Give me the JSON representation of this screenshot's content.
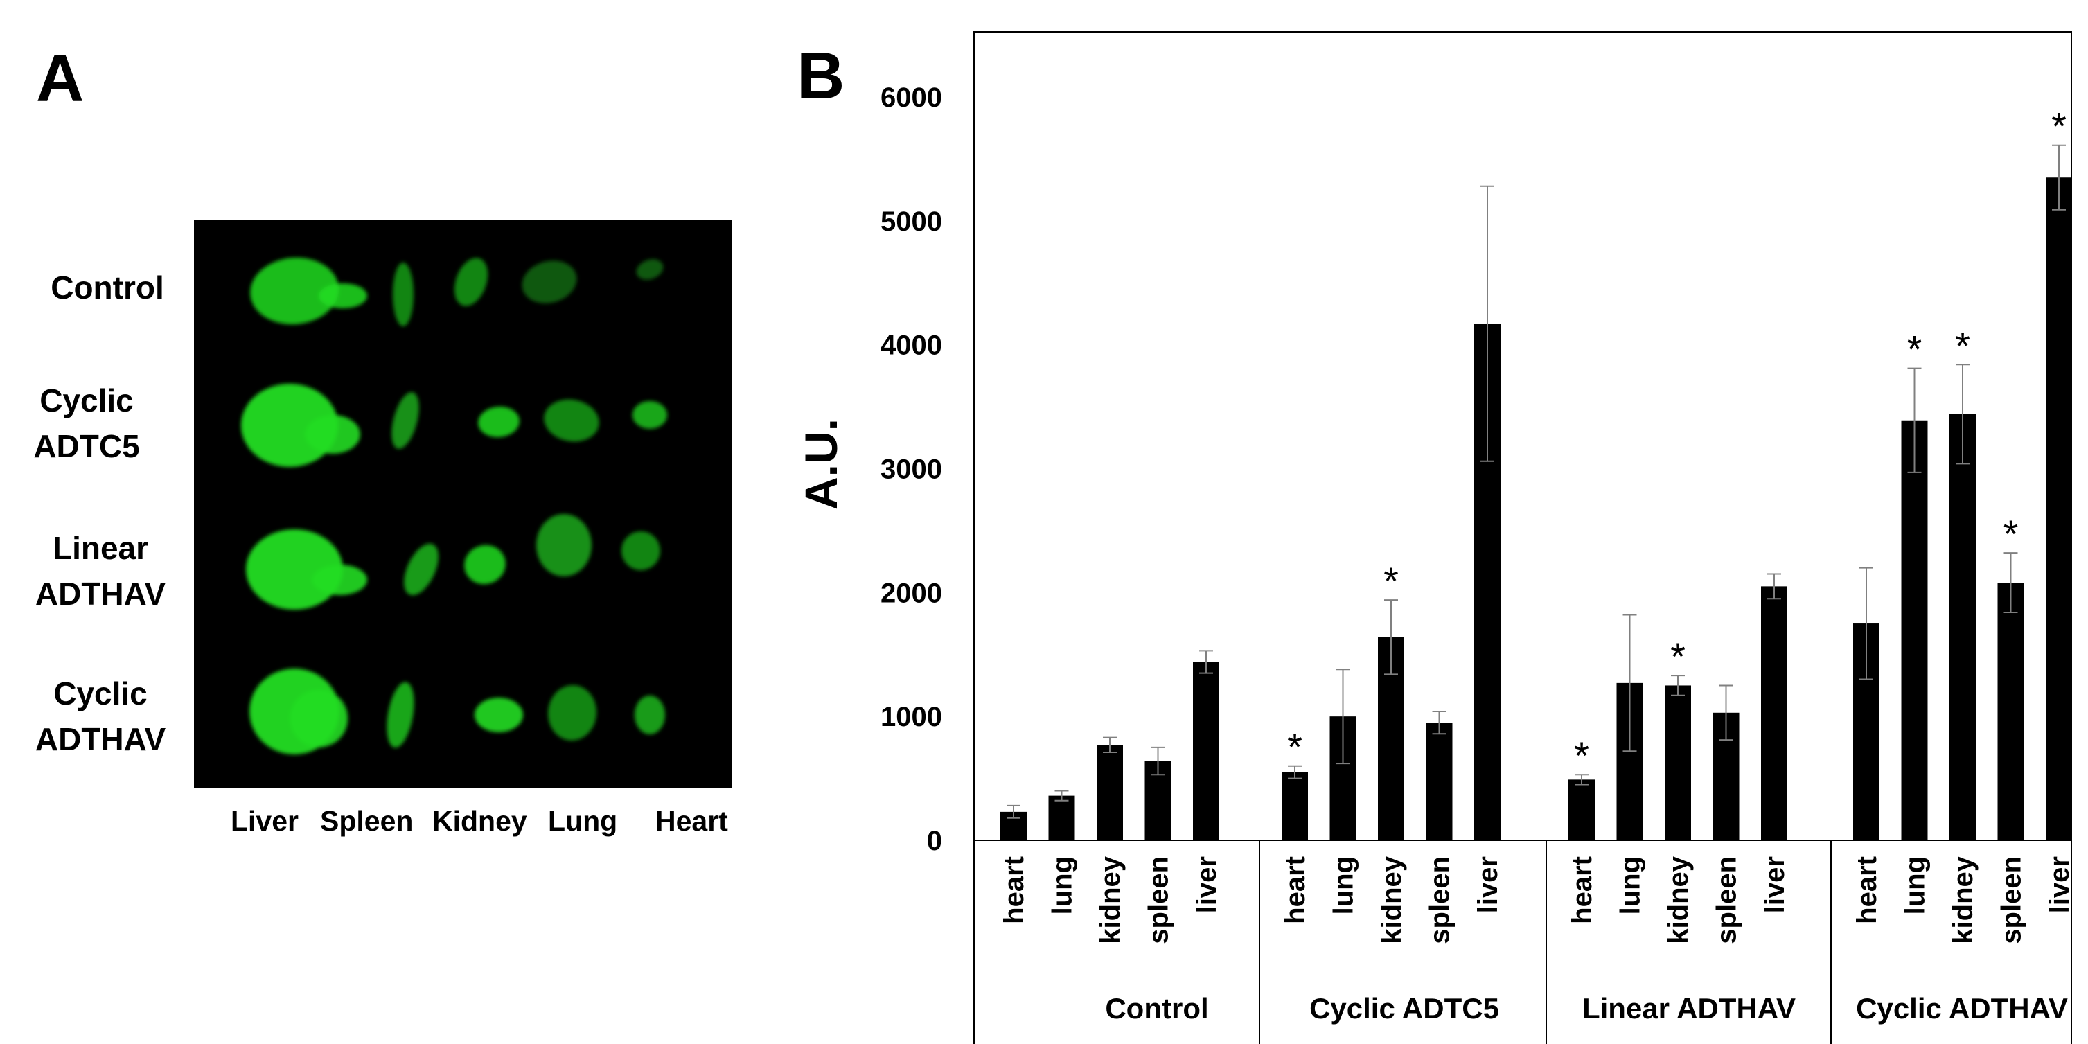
{
  "panel_a": {
    "letter": "A",
    "row_labels": [
      [
        "Control"
      ],
      [
        "Cyclic",
        "ADTC5"
      ],
      [
        "Linear",
        "ADTHAV"
      ],
      [
        "Cyclic",
        "ADTHAV"
      ]
    ],
    "column_labels": [
      "Liver",
      "Spleen",
      "Kidney",
      "Lung",
      "Heart"
    ],
    "fluorescence_color": "#22dd22",
    "background_color": "#000000"
  },
  "panel_b": {
    "letter": "B"
  },
  "chart_data": {
    "type": "bar",
    "ylabel": "A.U.",
    "xlabel": "",
    "ylim": [
      0,
      6500
    ],
    "yticks": [
      0,
      1000,
      2000,
      3000,
      4000,
      5000,
      6000
    ],
    "grid": false,
    "bar_color": "#000000",
    "error_bar_color": "#808080",
    "significance_marker": "*",
    "groups": [
      {
        "name": "Control",
        "categories": [
          "heart",
          "lung",
          "kidney",
          "spleen",
          "liver"
        ],
        "values": [
          230,
          360,
          770,
          640,
          1440
        ],
        "errors": [
          50,
          40,
          60,
          110,
          90
        ],
        "significant": [
          false,
          false,
          false,
          false,
          false
        ]
      },
      {
        "name": "Cyclic ADTC5",
        "categories": [
          "heart",
          "lung",
          "kidney",
          "spleen",
          "liver"
        ],
        "values": [
          550,
          1000,
          1640,
          950,
          4170
        ],
        "errors": [
          50,
          380,
          300,
          90,
          1110
        ],
        "significant": [
          true,
          false,
          true,
          false,
          false
        ]
      },
      {
        "name": "Linear ADTHAV",
        "categories": [
          "heart",
          "lung",
          "kidney",
          "spleen",
          "liver"
        ],
        "values": [
          490,
          1270,
          1250,
          1030,
          2050
        ],
        "errors": [
          40,
          550,
          80,
          220,
          100
        ],
        "significant": [
          true,
          false,
          true,
          false,
          false
        ]
      },
      {
        "name": "Cyclic ADTHAV",
        "categories": [
          "heart",
          "lung",
          "kidney",
          "spleen",
          "liver"
        ],
        "values": [
          1750,
          3390,
          3440,
          2080,
          5350
        ],
        "errors": [
          450,
          420,
          400,
          240,
          260
        ],
        "significant": [
          false,
          true,
          true,
          true,
          true
        ]
      }
    ]
  }
}
